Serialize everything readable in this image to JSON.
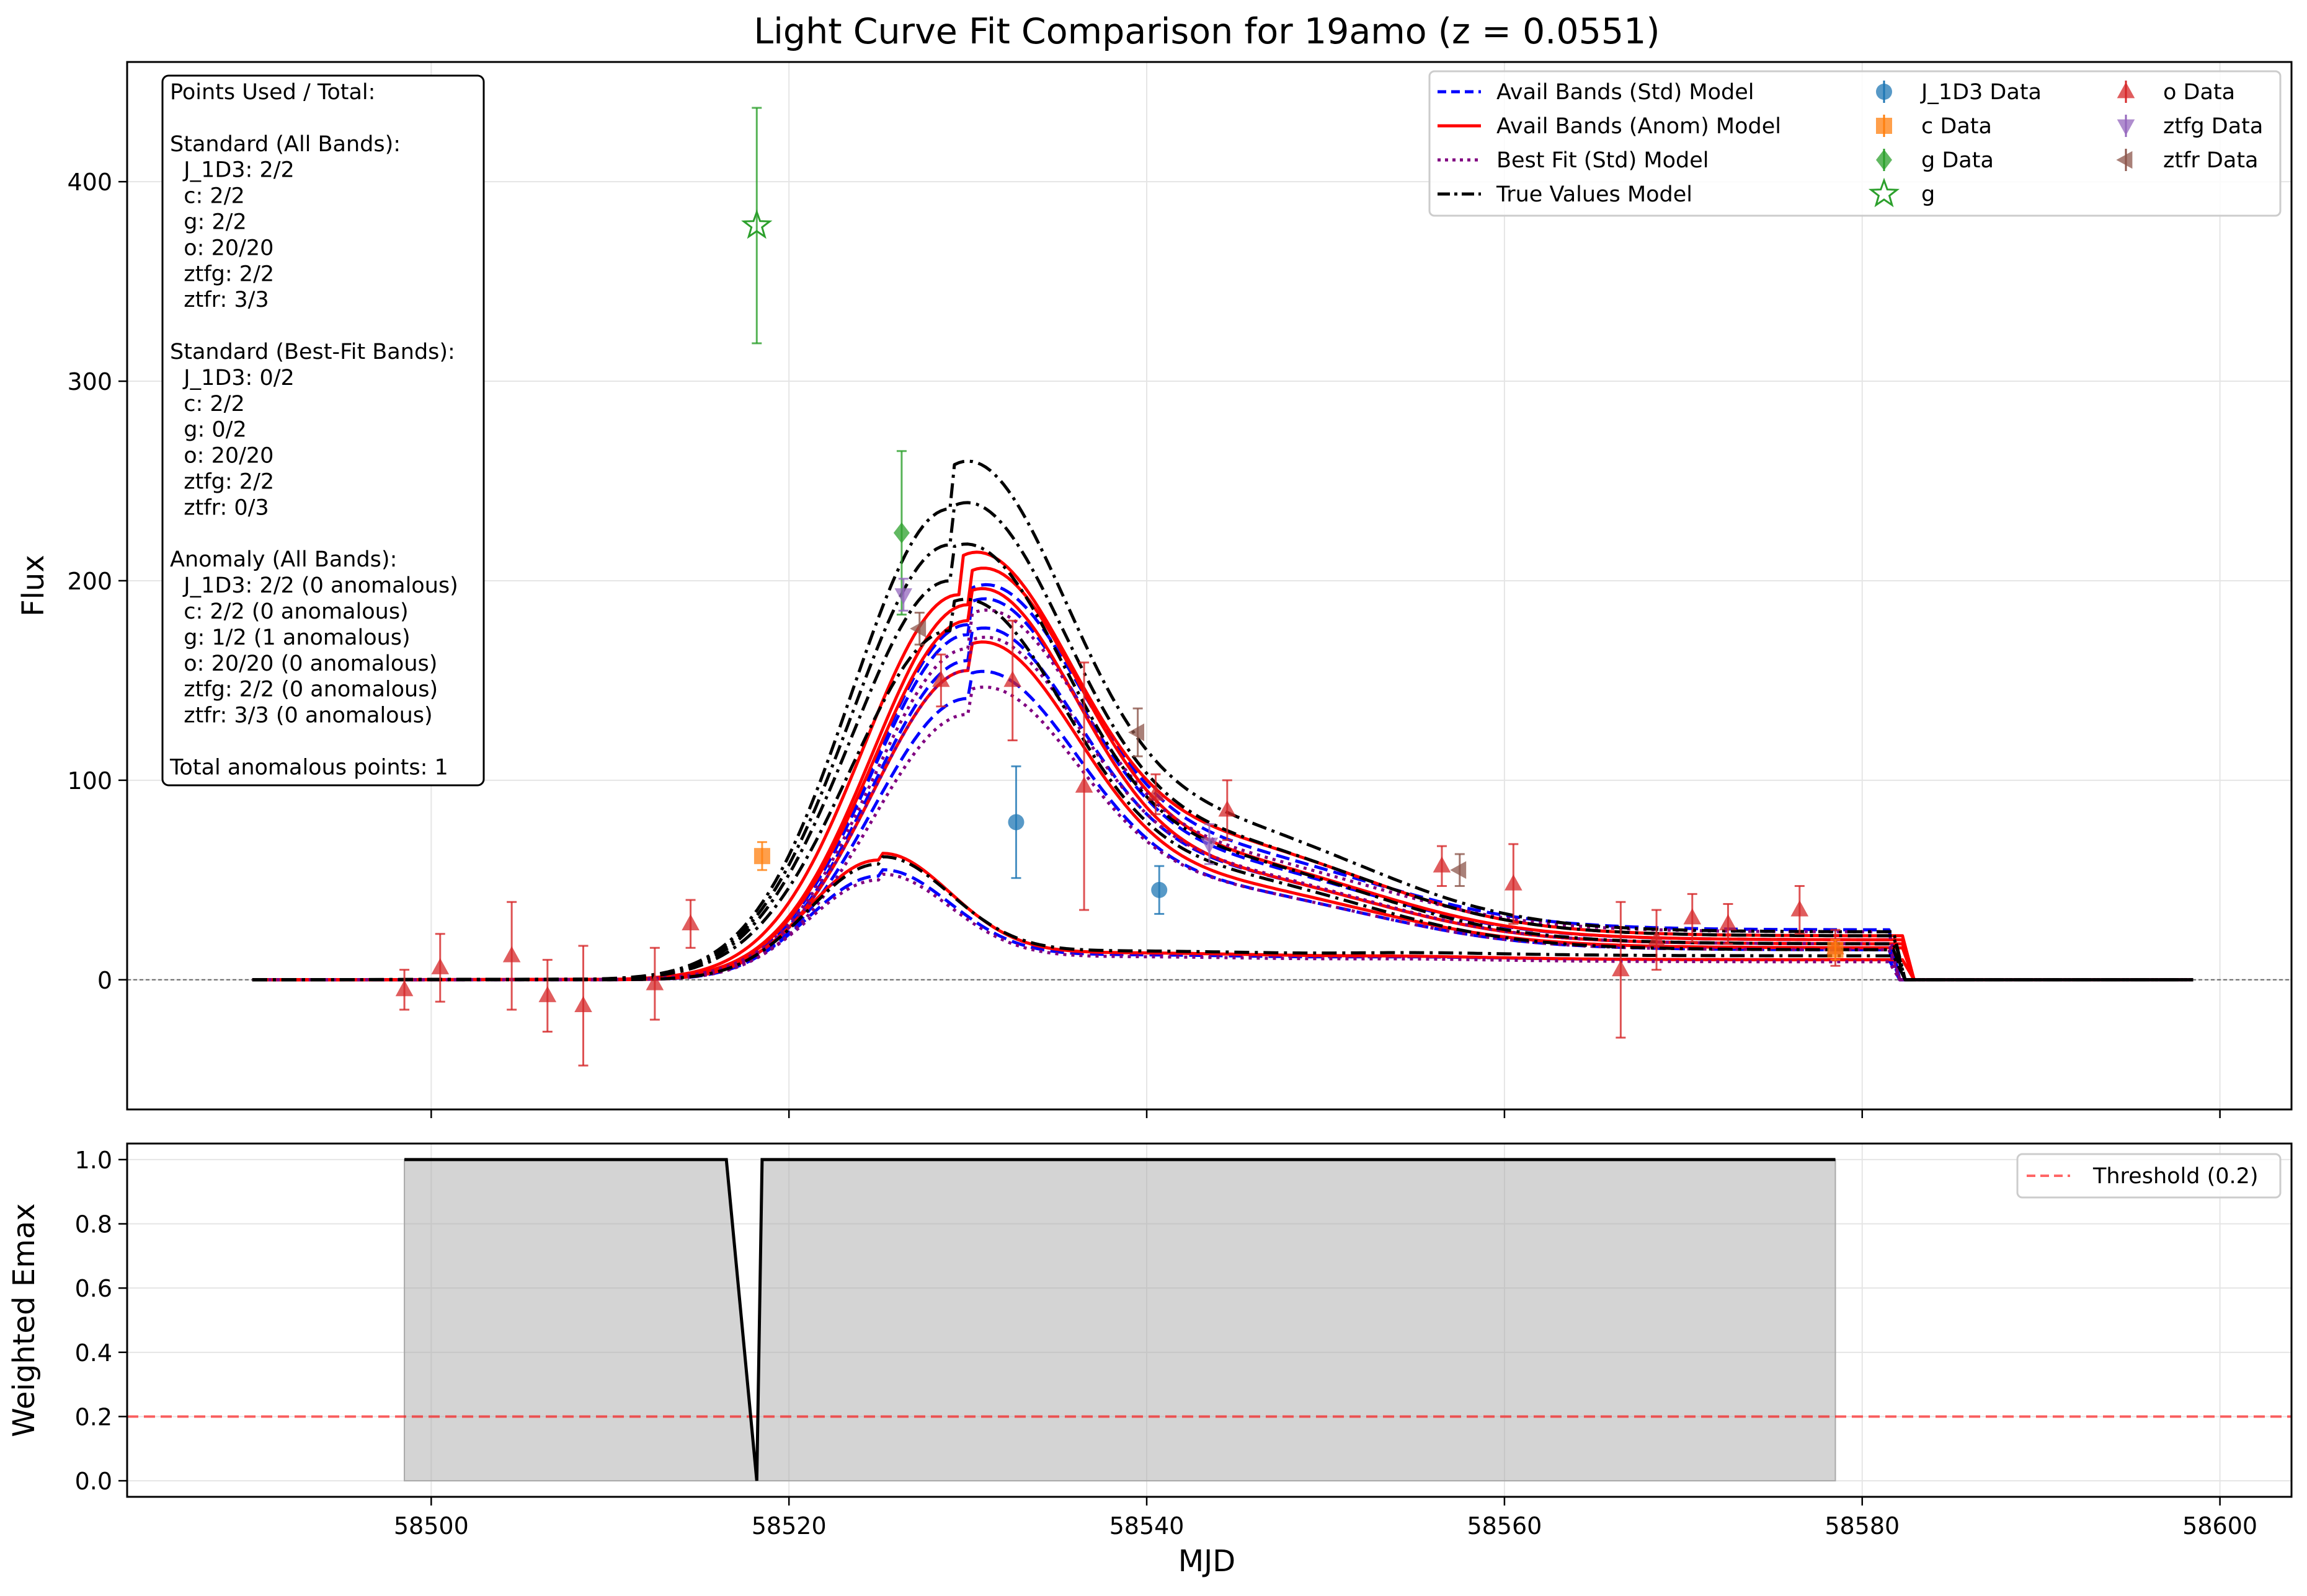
{
  "figure": {
    "title": "Light Curve Fit Comparison for 19amo (z = 0.0551)"
  },
  "chart_data": [
    {
      "type": "line",
      "panel": "top",
      "title": "Light Curve Fit Comparison for 19amo (z = 0.0551)",
      "xlabel": "",
      "ylabel": "Flux",
      "xlim": [
        58483,
        58604
      ],
      "ylim": [
        -65,
        460
      ],
      "yticks": [
        0,
        100,
        200,
        300,
        400
      ],
      "xticks": [
        58500,
        58520,
        58540,
        58560,
        58580,
        58600
      ],
      "grid": true,
      "legend_position": "top-right",
      "legend": [
        {
          "label": "Avail Bands (Std) Model",
          "kind": "line",
          "color": "#0000ff",
          "dash": "dashed"
        },
        {
          "label": "Avail Bands (Anom) Model",
          "kind": "line",
          "color": "#ff0000",
          "dash": "solid"
        },
        {
          "label": "Best Fit (Std) Model",
          "kind": "line",
          "color": "#800080",
          "dash": "dotted"
        },
        {
          "label": "True Values Model",
          "kind": "line",
          "color": "#000000",
          "dash": "dashdot"
        },
        {
          "label": "J_1D3 Data",
          "kind": "marker",
          "marker": "circle",
          "color": "#1f77b4"
        },
        {
          "label": "c Data",
          "kind": "marker",
          "marker": "square",
          "color": "#ff7f0e"
        },
        {
          "label": "g Data",
          "kind": "marker",
          "marker": "diamond",
          "color": "#2ca02c"
        },
        {
          "label": "g",
          "kind": "marker",
          "marker": "star-open",
          "color": "#2ca02c"
        },
        {
          "label": "o Data",
          "kind": "marker",
          "marker": "triangle-up",
          "color": "#d62728"
        },
        {
          "label": "ztfg Data",
          "kind": "marker",
          "marker": "triangle-down",
          "color": "#9467bd"
        },
        {
          "label": "ztfr Data",
          "kind": "marker",
          "marker": "triangle-left",
          "color": "#8c564b"
        }
      ],
      "annotation_box": [
        "Points Used / Total:",
        "",
        "Standard (All Bands):",
        "  J_1D3: 2/2",
        "  c: 2/2",
        "  g: 2/2",
        "  o: 20/20",
        "  ztfg: 2/2",
        "  ztfr: 3/3",
        "",
        "Standard (Best-Fit Bands):",
        "  J_1D3: 0/2",
        "  c: 2/2",
        "  g: 0/2",
        "  o: 20/20",
        "  ztfg: 2/2",
        "  ztfr: 0/3",
        "",
        "Anomaly (All Bands):",
        "  J_1D3: 2/2 (0 anomalous)",
        "  c: 2/2 (0 anomalous)",
        "  g: 1/2 (1 anomalous)",
        "  o: 20/20 (0 anomalous)",
        "  ztfg: 2/2 (0 anomalous)",
        "  ztfr: 3/3 (0 anomalous)",
        "",
        "Total anomalous points: 1"
      ],
      "model_curves": [
        {
          "series": "Avail Bands (Std) Model",
          "start": 58490,
          "t0": 58510,
          "peak_t": 58530,
          "peak": 178,
          "plateau": 75,
          "end_val": 25,
          "cut": 58581.5,
          "rise_w": 7.5
        },
        {
          "series": "Avail Bands (Std) Model",
          "start": 58490,
          "t0": 58510,
          "peak_t": 58530,
          "peak": 173,
          "plateau": 68,
          "end_val": 20,
          "cut": 58581.5,
          "rise_w": 7.5
        },
        {
          "series": "Avail Bands (Std) Model",
          "start": 58490,
          "t0": 58510,
          "peak_t": 58530,
          "peak": 160,
          "plateau": 62,
          "end_val": 18,
          "cut": 58581.5,
          "rise_w": 7.5
        },
        {
          "series": "Avail Bands (Std) Model",
          "start": 58490,
          "t0": 58510,
          "peak_t": 58530,
          "peak": 141,
          "plateau": 52,
          "end_val": 15,
          "cut": 58581.5,
          "rise_w": 7.5
        },
        {
          "series": "Avail Bands (Std) Model",
          "start": 58490,
          "t0": 58510,
          "peak_t": 58525,
          "peak": 52,
          "plateau": 13,
          "end_val": 10,
          "cut": 58581.5,
          "rise_w": 5.5
        },
        {
          "series": "Avail Bands (Anom) Model",
          "start": 58490,
          "t0": 58510,
          "peak_t": 58529.5,
          "peak": 193,
          "plateau": 80,
          "end_val": 22,
          "cut": 58582.3,
          "rise_w": 7.5
        },
        {
          "series": "Avail Bands (Anom) Model",
          "start": 58490,
          "t0": 58510,
          "peak_t": 58530,
          "peak": 188,
          "plateau": 70,
          "end_val": 20,
          "cut": 58582.3,
          "rise_w": 7.5
        },
        {
          "series": "Avail Bands (Anom) Model",
          "start": 58490,
          "t0": 58510,
          "peak_t": 58530,
          "peak": 180,
          "plateau": 62,
          "end_val": 18,
          "cut": 58582.3,
          "rise_w": 7.5
        },
        {
          "series": "Avail Bands (Anom) Model",
          "start": 58490,
          "t0": 58510,
          "peak_t": 58530,
          "peak": 155,
          "plateau": 55,
          "end_val": 16,
          "cut": 58582.3,
          "rise_w": 7.5
        },
        {
          "series": "Avail Bands (Anom) Model",
          "start": 58490,
          "t0": 58510,
          "peak_t": 58525,
          "peak": 60,
          "plateau": 14,
          "end_val": 10,
          "cut": 58582.3,
          "rise_w": 5.5
        },
        {
          "series": "Best Fit (Std) Model",
          "start": 58490,
          "t0": 58510,
          "peak_t": 58530,
          "peak": 166,
          "plateau": 72,
          "end_val": 24,
          "cut": 58581.5,
          "rise_w": 7.5
        },
        {
          "series": "Best Fit (Std) Model",
          "start": 58490,
          "t0": 58510,
          "peak_t": 58530,
          "peak": 155,
          "plateau": 63,
          "end_val": 18,
          "cut": 58581.5,
          "rise_w": 7.5
        },
        {
          "series": "Best Fit (Std) Model",
          "start": 58490,
          "t0": 58510,
          "peak_t": 58530,
          "peak": 133,
          "plateau": 52,
          "end_val": 15,
          "cut": 58581.5,
          "rise_w": 7.5
        },
        {
          "series": "Best Fit (Std) Model",
          "start": 58490,
          "t0": 58510,
          "peak_t": 58525,
          "peak": 50,
          "plateau": 12,
          "end_val": 9,
          "cut": 58581.5,
          "rise_w": 5.5
        },
        {
          "series": "True Values Model",
          "start": 58490,
          "t0": 58509,
          "peak_t": 58529,
          "peak": 236,
          "plateau": 90,
          "end_val": 24,
          "cut": 58581.8,
          "rise_w": 7.8
        },
        {
          "series": "True Values Model",
          "start": 58490,
          "t0": 58509,
          "peak_t": 58529,
          "peak": 218,
          "plateau": 80,
          "end_val": 22,
          "cut": 58581.8,
          "rise_w": 7.8
        },
        {
          "series": "True Values Model",
          "start": 58490,
          "t0": 58509,
          "peak_t": 58529,
          "peak": 200,
          "plateau": 70,
          "end_val": 18,
          "cut": 58581.8,
          "rise_w": 7.8
        },
        {
          "series": "True Values Model",
          "start": 58490,
          "t0": 58509,
          "peak_t": 58529,
          "peak": 175,
          "plateau": 60,
          "end_val": 15,
          "cut": 58581.8,
          "rise_w": 7.8
        },
        {
          "series": "True Values Model",
          "start": 58490,
          "t0": 58509,
          "peak_t": 58525,
          "peak": 58,
          "plateau": 15,
          "end_val": 12,
          "cut": 58581.8,
          "rise_w": 5.5
        }
      ],
      "data_points": [
        {
          "band": "o",
          "x": 58498.5,
          "y": -5,
          "err": 10
        },
        {
          "band": "o",
          "x": 58500.5,
          "y": 6,
          "err": 17
        },
        {
          "band": "o",
          "x": 58504.5,
          "y": 12,
          "err": 27
        },
        {
          "band": "o",
          "x": 58506.5,
          "y": -8,
          "err": 18
        },
        {
          "band": "o",
          "x": 58508.5,
          "y": -13,
          "err": 30
        },
        {
          "band": "o",
          "x": 58512.5,
          "y": -2,
          "err": 18
        },
        {
          "band": "o",
          "x": 58514.5,
          "y": 28,
          "err": 12
        },
        {
          "band": "o",
          "x": 58528.5,
          "y": 150,
          "err": 13
        },
        {
          "band": "o",
          "x": 58532.5,
          "y": 150,
          "err": 30
        },
        {
          "band": "o",
          "x": 58536.5,
          "y": 97,
          "err": 62
        },
        {
          "band": "o",
          "x": 58540.5,
          "y": 93,
          "err": 10
        },
        {
          "band": "o",
          "x": 58544.5,
          "y": 85,
          "err": 15
        },
        {
          "band": "o",
          "x": 58556.5,
          "y": 57,
          "err": 10
        },
        {
          "band": "o",
          "x": 58560.5,
          "y": 48,
          "err": 20
        },
        {
          "band": "o",
          "x": 58566.5,
          "y": 5,
          "err": 34
        },
        {
          "band": "o",
          "x": 58568.5,
          "y": 20,
          "err": 15
        },
        {
          "band": "o",
          "x": 58570.5,
          "y": 31,
          "err": 12
        },
        {
          "band": "o",
          "x": 58572.5,
          "y": 28,
          "err": 10
        },
        {
          "band": "o",
          "x": 58576.5,
          "y": 35,
          "err": 12
        },
        {
          "band": "o",
          "x": 58578.5,
          "y": 16,
          "err": 9
        },
        {
          "band": "J_1D3",
          "x": 58532.7,
          "y": 79,
          "err": 28
        },
        {
          "band": "J_1D3",
          "x": 58540.7,
          "y": 45,
          "err": 12
        },
        {
          "band": "c",
          "x": 58518.5,
          "y": 62,
          "err": 7
        },
        {
          "band": "c",
          "x": 58578.5,
          "y": 15,
          "err": 5
        },
        {
          "band": "g",
          "x": 58526.3,
          "y": 224,
          "err": 41
        },
        {
          "band": "g-anomalous",
          "x": 58518.2,
          "y": 378,
          "err": 59
        },
        {
          "band": "ztfg",
          "x": 58526.4,
          "y": 193,
          "err": 8
        },
        {
          "band": "ztfg",
          "x": 58543.5,
          "y": 68,
          "err": 10
        },
        {
          "band": "ztfr",
          "x": 58527.3,
          "y": 176,
          "err": 8
        },
        {
          "band": "ztfr",
          "x": 58539.5,
          "y": 124,
          "err": 12
        },
        {
          "band": "ztfr",
          "x": 58557.5,
          "y": 55,
          "err": 8
        }
      ]
    },
    {
      "type": "area",
      "panel": "bottom",
      "xlabel": "MJD",
      "ylabel": "Weighted Emax",
      "xlim": [
        58483,
        58604
      ],
      "ylim": [
        -0.05,
        1.05
      ],
      "yticks": [
        "0.0",
        "0.2",
        "0.4",
        "0.6",
        "0.8",
        "1.0"
      ],
      "ytick_values": [
        0,
        0.2,
        0.4,
        0.6,
        0.8,
        1.0
      ],
      "xticks": [
        58500,
        58520,
        58540,
        58560,
        58580,
        58600
      ],
      "grid": true,
      "legend_position": "top-right",
      "legend": [
        {
          "label": "Threshold (0.2)",
          "color": "#ff0000",
          "dash": "dashed"
        }
      ],
      "threshold": 0.2,
      "fill_range": [
        58498.5,
        58578.5
      ],
      "x": [
        58498.5,
        58516.5,
        58518.2,
        58518.5,
        58578.5
      ],
      "y": [
        1.0,
        1.0,
        0.0,
        1.0,
        1.0
      ]
    }
  ]
}
